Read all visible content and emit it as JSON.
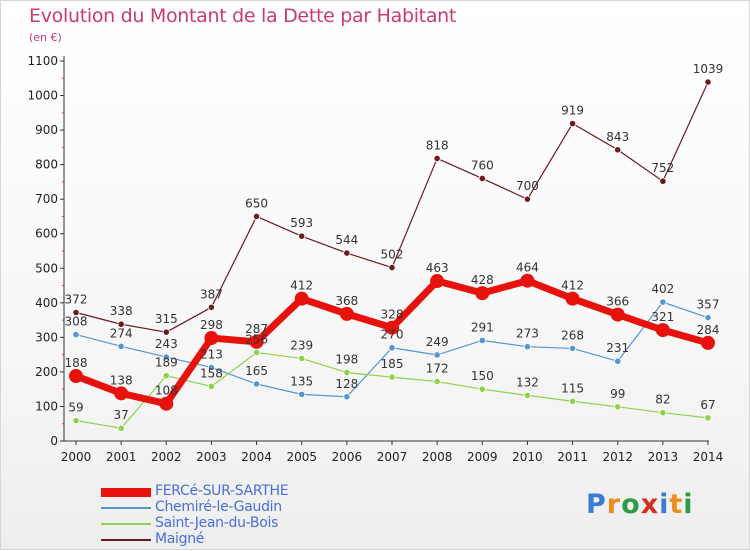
{
  "title": "Evolution du Montant de la Dette par Habitant",
  "subtitle": "(en €)",
  "logo": {
    "text": "Proxiti",
    "colors": [
      "#3a7bd5",
      "#f08c1e",
      "#2e9c46",
      "#d2301e",
      "#3a7bd5",
      "#f08c1e",
      "#2e9c46"
    ]
  },
  "chart_data": {
    "type": "line",
    "title": "Evolution du Montant de la Dette par Habitant",
    "subtitle": "(en €)",
    "xlabel": "",
    "ylabel": "",
    "ylim": [
      0,
      1100
    ],
    "yticks": [
      0,
      100,
      200,
      300,
      400,
      500,
      600,
      700,
      800,
      900,
      1000,
      1100
    ],
    "categories": [
      "2000",
      "2001",
      "2002",
      "2003",
      "2004",
      "2005",
      "2006",
      "2007",
      "2008",
      "2009",
      "2010",
      "2011",
      "2012",
      "2013",
      "2014"
    ],
    "grid": false,
    "legend_position": "bottom-left",
    "series": [
      {
        "name": "FERCé-SUR-SARTHE",
        "color": "#e8120c",
        "values": [
          188,
          138,
          108,
          298,
          287,
          412,
          368,
          328,
          463,
          428,
          464,
          412,
          366,
          321,
          284
        ]
      },
      {
        "name": "Chemiré-le-Gaudin",
        "color": "#5596d0",
        "values": [
          308,
          274,
          243,
          213,
          165,
          135,
          128,
          270,
          249,
          291,
          273,
          268,
          231,
          402,
          357
        ]
      },
      {
        "name": "Saint-Jean-du-Bois",
        "color": "#8ed24c",
        "values": [
          59,
          37,
          189,
          158,
          256,
          239,
          198,
          185,
          172,
          150,
          132,
          115,
          99,
          82,
          67
        ]
      },
      {
        "name": "Maigné",
        "color": "#6b1a1e",
        "values": [
          372,
          338,
          315,
          387,
          650,
          593,
          544,
          502,
          818,
          760,
          700,
          919,
          843,
          752,
          1039
        ]
      }
    ]
  }
}
